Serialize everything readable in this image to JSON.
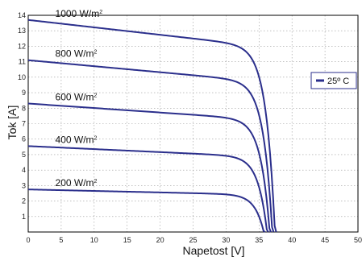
{
  "chart_data": {
    "type": "line",
    "xlabel": "Napetost [V]",
    "ylabel": "Tok [A]",
    "xlim": [
      0,
      50
    ],
    "ylim": [
      0,
      14
    ],
    "xticks": [
      0,
      5,
      10,
      15,
      20,
      25,
      30,
      35,
      40,
      45,
      50
    ],
    "yticks": [
      1,
      2,
      3,
      4,
      5,
      6,
      7,
      8,
      9,
      10,
      11,
      12,
      13,
      14
    ],
    "grid": true,
    "legend": {
      "position": "right",
      "entries": [
        "25º C"
      ]
    },
    "line_color": "#2b2f8c",
    "series": [
      {
        "label_main": "1000 W/m",
        "label_sup": "2",
        "isc": 13.7,
        "voc": 37.6
      },
      {
        "label_main": "800 W/m",
        "label_sup": "2",
        "isc": 11.1,
        "voc": 37.2
      },
      {
        "label_main": "600 W/m",
        "label_sup": "2",
        "isc": 8.3,
        "voc": 36.8
      },
      {
        "label_main": "400 W/m",
        "label_sup": "2",
        "isc": 5.55,
        "voc": 36.4
      },
      {
        "label_main": "200 W/m",
        "label_sup": "2",
        "isc": 2.75,
        "voc": 35.9
      }
    ]
  }
}
